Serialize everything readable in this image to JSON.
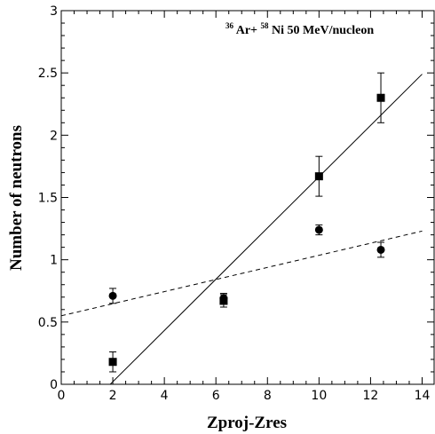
{
  "chart_data": {
    "type": "scatter",
    "xlabel": "Zproj-Zres",
    "ylabel": "Number of neutrons",
    "xlim": [
      0,
      14.5
    ],
    "ylim": [
      0,
      3
    ],
    "x_ticks": [
      "0",
      "2",
      "4",
      "6",
      "8",
      "10",
      "12",
      "14"
    ],
    "y_ticks": [
      "0",
      "0.5",
      "1",
      "1.5",
      "2",
      "2.5",
      "3"
    ],
    "annotation": {
      "a1": "36",
      "t1": "Ar+",
      "a2": "58",
      "t2": "Ni 50 MeV/nucleon"
    },
    "grid": false,
    "series": [
      {
        "marker": "square",
        "x": [
          2.0,
          6.3,
          10.0,
          12.4
        ],
        "y": [
          0.18,
          0.67,
          1.67,
          2.3
        ],
        "err": [
          0.08,
          0.05,
          0.16,
          0.2
        ]
      },
      {
        "marker": "circle",
        "x": [
          2.0,
          6.3,
          10.0,
          12.4
        ],
        "y": [
          0.71,
          0.69,
          1.24,
          1.08
        ],
        "err": [
          0.06,
          0.04,
          0.04,
          0.06
        ]
      }
    ],
    "fits": [
      {
        "style": "solid",
        "x": [
          1.9,
          14.0
        ],
        "y": [
          0.0,
          2.49
        ]
      },
      {
        "style": "dashed",
        "x": [
          0.0,
          14.0
        ],
        "y": [
          0.55,
          1.23
        ]
      }
    ]
  }
}
